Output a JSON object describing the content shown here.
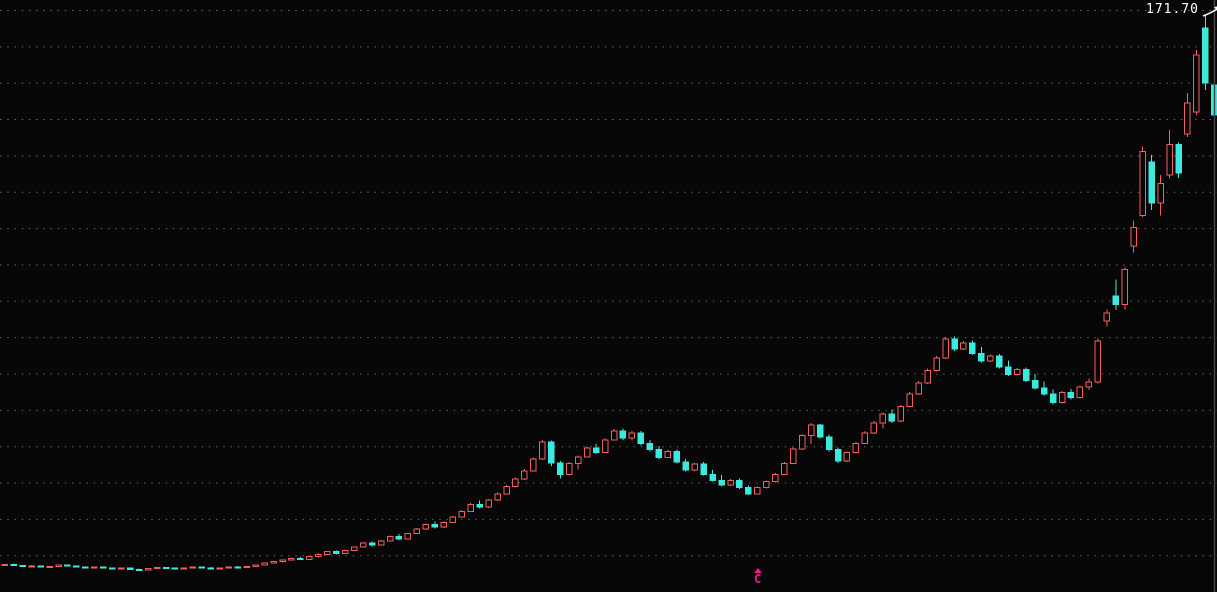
{
  "chart_data": {
    "type": "candlestick",
    "title": "",
    "xlabel": "",
    "ylabel": "",
    "ylim": [
      0,
      176
    ],
    "grid": "horizontal-dotted",
    "legend": "none",
    "colors": {
      "background": "#070707",
      "up": "#f55e5e",
      "down": "#3ce9dd",
      "gridline": "#5f5f5f",
      "border": "#474747",
      "annotation_text": "#ffffff",
      "event_marker": "#f2188e"
    },
    "annotation": {
      "price_label": "171.70",
      "arrow": "up-right",
      "position": "top-right"
    },
    "event_marker": {
      "symbol": "C",
      "shape_above": "small-triangle",
      "candle_index": 84
    },
    "ohlc": [
      [
        7.9,
        8.3,
        7.7,
        8.2
      ],
      [
        8.2,
        8.4,
        7.8,
        7.9
      ],
      [
        7.9,
        8.1,
        7.5,
        7.6
      ],
      [
        7.6,
        8.0,
        7.4,
        7.8
      ],
      [
        7.8,
        7.9,
        7.3,
        7.4
      ],
      [
        7.4,
        7.8,
        7.2,
        7.6
      ],
      [
        7.6,
        8.1,
        7.5,
        8.0
      ],
      [
        8.0,
        8.2,
        7.6,
        7.7
      ],
      [
        7.7,
        7.9,
        7.3,
        7.4
      ],
      [
        7.4,
        7.6,
        7.0,
        7.2
      ],
      [
        7.2,
        7.5,
        7.0,
        7.4
      ],
      [
        7.4,
        7.6,
        7.1,
        7.2
      ],
      [
        7.2,
        7.3,
        6.8,
        6.9
      ],
      [
        6.9,
        7.2,
        6.7,
        7.1
      ],
      [
        7.1,
        7.2,
        6.6,
        6.7
      ],
      [
        6.7,
        7.0,
        6.4,
        6.6
      ],
      [
        6.6,
        7.1,
        6.5,
        7.0
      ],
      [
        7.0,
        7.4,
        6.9,
        7.3
      ],
      [
        7.3,
        7.5,
        7.0,
        7.1
      ],
      [
        7.1,
        7.3,
        6.8,
        6.9
      ],
      [
        6.9,
        7.2,
        6.7,
        7.1
      ],
      [
        7.1,
        7.5,
        7.0,
        7.4
      ],
      [
        7.4,
        7.6,
        7.1,
        7.2
      ],
      [
        7.2,
        7.4,
        6.9,
        7.0
      ],
      [
        7.0,
        7.3,
        6.8,
        7.2
      ],
      [
        7.2,
        7.6,
        7.1,
        7.5
      ],
      [
        7.5,
        7.8,
        7.3,
        7.4
      ],
      [
        7.4,
        7.7,
        7.2,
        7.6
      ],
      [
        7.6,
        8.2,
        7.5,
        8.1
      ],
      [
        8.1,
        8.7,
        8.0,
        8.6
      ],
      [
        8.6,
        9.2,
        8.4,
        9.0
      ],
      [
        9.0,
        9.6,
        8.8,
        9.5
      ],
      [
        9.5,
        10.2,
        9.3,
        10.0
      ],
      [
        10.0,
        10.4,
        9.5,
        9.7
      ],
      [
        9.7,
        10.6,
        9.6,
        10.5
      ],
      [
        10.5,
        11.4,
        10.3,
        11.2
      ],
      [
        11.2,
        12.2,
        11.0,
        12.0
      ],
      [
        12.0,
        12.4,
        11.2,
        11.4
      ],
      [
        11.4,
        12.6,
        11.3,
        12.4
      ],
      [
        12.4,
        13.6,
        12.2,
        13.4
      ],
      [
        13.4,
        14.8,
        13.2,
        14.5
      ],
      [
        14.5,
        15.0,
        13.6,
        13.9
      ],
      [
        13.9,
        15.4,
        13.8,
        15.2
      ],
      [
        15.2,
        16.8,
        15.0,
        16.5
      ],
      [
        16.5,
        17.2,
        15.5,
        15.8
      ],
      [
        15.8,
        17.6,
        15.6,
        17.4
      ],
      [
        17.4,
        19.0,
        17.2,
        18.7
      ],
      [
        18.7,
        20.4,
        18.4,
        20.1
      ],
      [
        20.1,
        21.0,
        18.9,
        19.3
      ],
      [
        19.3,
        21.0,
        19.1,
        20.7
      ],
      [
        20.7,
        22.6,
        20.5,
        22.3
      ],
      [
        22.3,
        24.4,
        22.1,
        24.0
      ],
      [
        24.0,
        26.4,
        23.8,
        26.0
      ],
      [
        26.0,
        27.2,
        24.8,
        25.2
      ],
      [
        25.2,
        27.6,
        25.0,
        27.3
      ],
      [
        27.3,
        29.6,
        27.1,
        29.2
      ],
      [
        29.2,
        31.8,
        29.0,
        31.4
      ],
      [
        31.4,
        34.0,
        31.1,
        33.6
      ],
      [
        33.6,
        36.5,
        33.3,
        36.0
      ],
      [
        36.0,
        40.0,
        35.8,
        39.5
      ],
      [
        39.5,
        45.2,
        39.3,
        44.6
      ],
      [
        44.6,
        45.0,
        37.5,
        38.3
      ],
      [
        38.3,
        39.0,
        33.8,
        35.0
      ],
      [
        35.0,
        38.6,
        34.7,
        38.2
      ],
      [
        38.2,
        40.6,
        36.4,
        40.2
      ],
      [
        40.2,
        43.2,
        40.0,
        42.8
      ],
      [
        42.8,
        44.0,
        41.0,
        41.5
      ],
      [
        41.5,
        45.6,
        41.3,
        45.2
      ],
      [
        45.2,
        48.4,
        45.0,
        47.9
      ],
      [
        47.9,
        48.6,
        45.2,
        45.8
      ],
      [
        45.8,
        47.8,
        45.0,
        47.3
      ],
      [
        47.3,
        47.8,
        43.6,
        44.1
      ],
      [
        44.1,
        45.2,
        41.8,
        42.3
      ],
      [
        42.3,
        43.4,
        39.6,
        40.0
      ],
      [
        40.0,
        42.2,
        39.8,
        41.8
      ],
      [
        41.8,
        42.4,
        38.2,
        38.7
      ],
      [
        38.7,
        39.6,
        35.8,
        36.2
      ],
      [
        36.2,
        38.4,
        36.0,
        38.0
      ],
      [
        38.0,
        38.6,
        34.6,
        35.0
      ],
      [
        35.0,
        36.2,
        32.8,
        33.2
      ],
      [
        33.2,
        34.8,
        31.4,
        31.8
      ],
      [
        31.8,
        33.6,
        31.5,
        33.2
      ],
      [
        33.2,
        33.8,
        30.6,
        31.0
      ],
      [
        31.0,
        31.6,
        28.8,
        29.2
      ],
      [
        29.2,
        31.4,
        29.0,
        31.0
      ],
      [
        31.0,
        33.2,
        30.8,
        32.8
      ],
      [
        32.8,
        35.4,
        32.6,
        35.0
      ],
      [
        35.0,
        38.6,
        34.8,
        38.2
      ],
      [
        38.2,
        43.0,
        38.0,
        42.5
      ],
      [
        42.5,
        47.0,
        42.2,
        46.5
      ],
      [
        46.5,
        50.2,
        44.0,
        49.6
      ],
      [
        49.6,
        50.0,
        45.6,
        46.1
      ],
      [
        46.1,
        46.8,
        41.8,
        42.3
      ],
      [
        42.3,
        42.9,
        38.4,
        38.9
      ],
      [
        38.9,
        41.8,
        38.6,
        41.4
      ],
      [
        41.4,
        44.6,
        41.2,
        44.2
      ],
      [
        44.2,
        47.8,
        44.0,
        47.3
      ],
      [
        47.3,
        50.8,
        47.0,
        50.3
      ],
      [
        50.3,
        53.4,
        48.6,
        52.9
      ],
      [
        52.9,
        54.2,
        50.2,
        50.8
      ],
      [
        50.8,
        55.6,
        50.6,
        55.1
      ],
      [
        55.1,
        59.4,
        54.8,
        58.8
      ],
      [
        58.8,
        62.8,
        58.5,
        62.2
      ],
      [
        62.2,
        66.4,
        61.9,
        65.8
      ],
      [
        65.8,
        70.2,
        65.5,
        69.6
      ],
      [
        69.6,
        75.8,
        69.3,
        75.2
      ],
      [
        75.2,
        76.0,
        71.6,
        72.2
      ],
      [
        72.2,
        74.6,
        71.9,
        74.1
      ],
      [
        74.1,
        74.8,
        70.4,
        70.9
      ],
      [
        70.9,
        72.8,
        68.2,
        68.7
      ],
      [
        68.7,
        70.6,
        68.4,
        70.2
      ],
      [
        70.2,
        70.8,
        66.4,
        66.9
      ],
      [
        66.9,
        68.8,
        64.2,
        64.7
      ],
      [
        64.7,
        66.6,
        64.4,
        66.2
      ],
      [
        66.2,
        66.8,
        62.4,
        62.9
      ],
      [
        62.9,
        64.8,
        60.2,
        60.7
      ],
      [
        60.7,
        62.6,
        58.4,
        58.9
      ],
      [
        58.9,
        60.2,
        55.8,
        56.3
      ],
      [
        56.3,
        59.8,
        56.0,
        59.3
      ],
      [
        59.3,
        60.4,
        57.2,
        57.8
      ],
      [
        57.8,
        61.4,
        57.5,
        61.0
      ],
      [
        61.0,
        63.4,
        60.0,
        62.4
      ],
      [
        62.4,
        75.4,
        62.0,
        74.6
      ],
      [
        80.6,
        84.0,
        79.0,
        83.0
      ],
      [
        88.0,
        92.9,
        83.9,
        85.4
      ],
      [
        85.4,
        96.5,
        84.0,
        95.9
      ],
      [
        102.9,
        110.4,
        101.0,
        108.3
      ],
      [
        112.0,
        132.4,
        111.5,
        130.9
      ],
      [
        127.8,
        129.9,
        113.5,
        115.6
      ],
      [
        115.6,
        124.0,
        112.0,
        121.5
      ],
      [
        124.0,
        137.4,
        123.0,
        133.0
      ],
      [
        133.0,
        133.6,
        123.1,
        124.6
      ],
      [
        136.2,
        148.3,
        135.2,
        145.4
      ],
      [
        142.7,
        161.2,
        141.8,
        159.7
      ],
      [
        167.7,
        171.7,
        149.2,
        151.3
      ],
      [
        150.7,
        151.9,
        138.4,
        141.8
      ]
    ]
  }
}
